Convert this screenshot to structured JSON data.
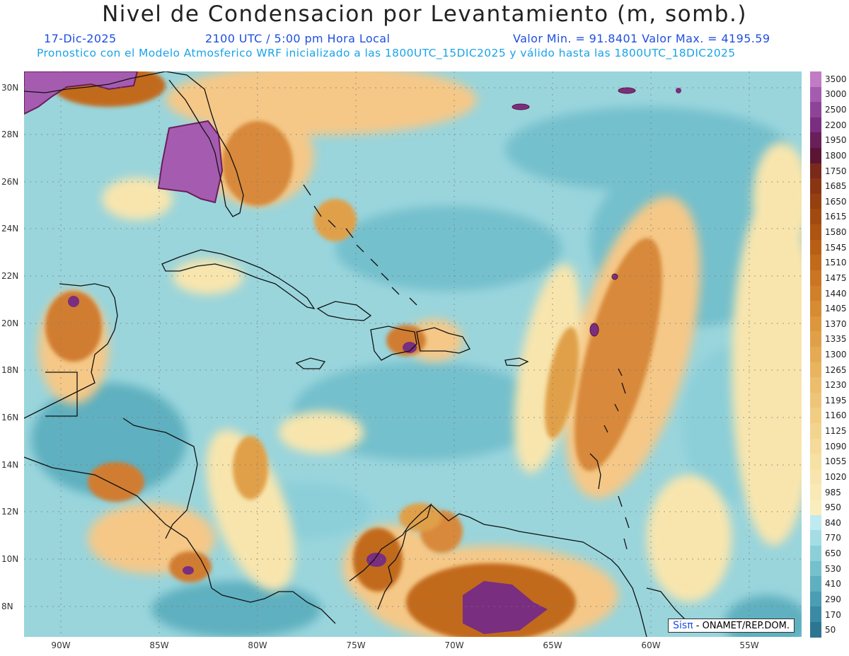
{
  "title": "Nivel de Condensacion por Levantamiento (m, somb.)",
  "date": "17-Dic-2025",
  "time": "2100 UTC / 5:00 pm Hora Local",
  "minmax": "Valor Min. = 91.8401  Valor Max. = 4195.59",
  "model_line": "Pronostico con el Modelo Atmosferico WRF inicializado a las 1800UTC_15DIC2025 y válido hasta las  1800UTC_18DIC2025",
  "credit": {
    "logo": "Sisπ",
    "text": " - ONAMET/REP.DOM."
  },
  "axes": {
    "lon_labels": [
      "90W",
      "85W",
      "80W",
      "75W",
      "70W",
      "65W",
      "60W",
      "55W"
    ],
    "lat_labels": [
      "30N",
      "28N",
      "26N",
      "24N",
      "22N",
      "20N",
      "18N",
      "16N",
      "14N",
      "12N",
      "10N",
      "8N"
    ]
  },
  "colorbar": {
    "labels": [
      "3500",
      "3000",
      "2500",
      "2200",
      "1950",
      "1800",
      "1750",
      "1685",
      "1650",
      "1615",
      "1580",
      "1545",
      "1510",
      "1475",
      "1440",
      "1405",
      "1370",
      "1335",
      "1300",
      "1265",
      "1230",
      "1195",
      "1160",
      "1125",
      "1090",
      "1055",
      "1020",
      "985",
      "950",
      "840",
      "770",
      "650",
      "530",
      "410",
      "290",
      "170",
      "50"
    ],
    "colors": [
      "#c17cc6",
      "#a55cb0",
      "#8d4498",
      "#7a2e7f",
      "#6a1e5a",
      "#5c1434",
      "#7a2a1a",
      "#8a3512",
      "#96400f",
      "#a14a10",
      "#ad5412",
      "#b85f15",
      "#c26a1b",
      "#ca7522",
      "#d1802a",
      "#d78b32",
      "#dc963c",
      "#e0a048",
      "#e4aa54",
      "#e8b460",
      "#ebbd6c",
      "#eec578",
      "#f1cd84",
      "#f3d48f",
      "#f5da99",
      "#f7e0a3",
      "#f8e5ad",
      "#f9e9b5",
      "#faedbe",
      "#bfeaf0",
      "#a5dde5",
      "#8ccfd9",
      "#74c0cd",
      "#5eb0c0",
      "#4a9db2",
      "#3a8aa3",
      "#2c7692"
    ]
  },
  "colors": {
    "ocean_base": "#9ad5dc",
    "warm": "#f5c887",
    "hot": "#d07d33",
    "extreme": "#7a2e7f",
    "title": "#222222",
    "blue_text": "#1e4fe0",
    "cyan_text": "#1aa3e8"
  }
}
